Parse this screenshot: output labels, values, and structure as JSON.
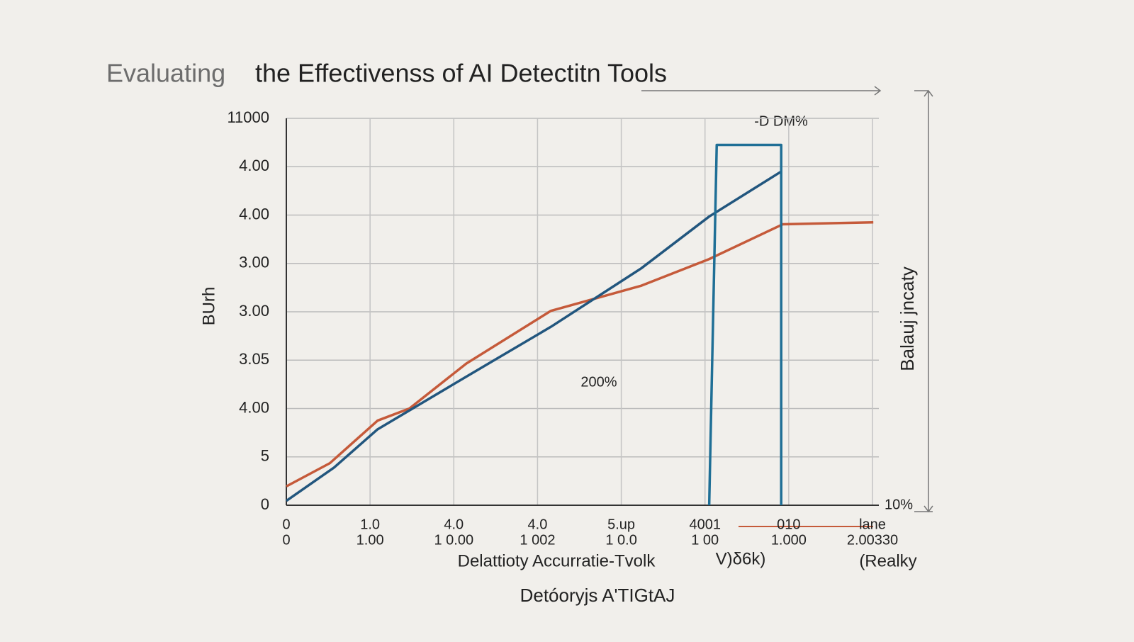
{
  "chart_data": {
    "type": "line",
    "title_lead": "Evaluating",
    "title": "the Effectivenss of AI Detectitn Tools",
    "ylabel": "BUrh",
    "y2label": "Balauj jncaty",
    "xlabel": "Delattioty Accurratie-Tvolk",
    "xlabel_mid": "V)δ6k)",
    "xlabel_right": "(Realky",
    "footer": "Detóoryjs A'TIGtAJ",
    "annotations": [
      "-D DM%",
      "200%",
      "10%"
    ],
    "xlim": [
      0,
      7
    ],
    "xticks": [
      0,
      {
        "value": 1,
        "label": "1.0"
      },
      {
        "value": 2,
        "label": "4.0"
      },
      {
        "value": 3,
        "label": "4.0"
      },
      {
        "value": 4,
        "label": "5.up"
      },
      {
        "value": 5,
        "label": "4001"
      },
      {
        "value": 6,
        "label": "010"
      },
      {
        "value": 7,
        "label": "lane"
      }
    ],
    "xtick_sublabels": [
      "0",
      "1.00",
      "1 0.00",
      "1 002",
      "1 0.0",
      "1 00",
      "1.000",
      "2.00330"
    ],
    "ylim": [
      0,
      8
    ],
    "yticks": [
      0,
      {
        "value": 1,
        "label": "5"
      },
      {
        "value": 2,
        "label": "4.00"
      },
      {
        "value": 3,
        "label": "3.05"
      },
      {
        "value": 4,
        "label": "3.00"
      },
      {
        "value": 5,
        "label": "3.00"
      },
      {
        "value": 6,
        "label": "4.00"
      },
      {
        "value": 7,
        "label": "4.00"
      },
      {
        "value": 8,
        "label": "11000"
      }
    ],
    "grid": true,
    "series": [
      {
        "color": "#c55a3a",
        "x": [
          0,
          0.52,
          1.09,
          1.47,
          2.15,
          3.16,
          4.24,
          5.05,
          5.93,
          7.01
        ],
        "values": [
          0.39,
          0.87,
          1.75,
          2.0,
          2.93,
          4.02,
          4.54,
          5.09,
          5.81,
          5.85
        ]
      },
      {
        "color": "#22567e",
        "x": [
          0,
          0.57,
          1.09,
          2.15,
          3.16,
          4.24,
          5.05,
          5.91
        ],
        "values": [
          0.09,
          0.78,
          1.57,
          2.66,
          3.69,
          4.9,
          5.97,
          6.9
        ]
      },
      {
        "color": "#1f6f96",
        "x": [
          5.05,
          5.14,
          5.91,
          5.91
        ],
        "values": [
          0,
          7.45,
          7.45,
          0
        ]
      }
    ]
  }
}
